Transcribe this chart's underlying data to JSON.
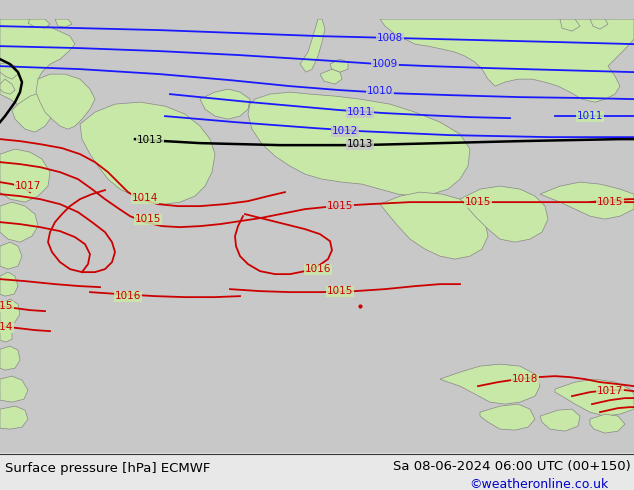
{
  "title_left": "Surface pressure [hPa] ECMWF",
  "title_right": "Sa 08-06-2024 06:00 UTC (00+150)",
  "credit": "©weatheronline.co.uk",
  "bg_color": "#c8c8c8",
  "land_green": "#c8e8a8",
  "land_outline": "#888888",
  "sea_color": "#c8c8c8",
  "blue_color": "#1a1aff",
  "black_color": "#000000",
  "red_color": "#cc0000",
  "bottom_bg": "#e8e8e8",
  "bottom_line": "#333333",
  "credit_color": "#0000cc",
  "lw_blue": 1.3,
  "lw_black": 1.8,
  "lw_red": 1.3,
  "label_fs": 7.5
}
